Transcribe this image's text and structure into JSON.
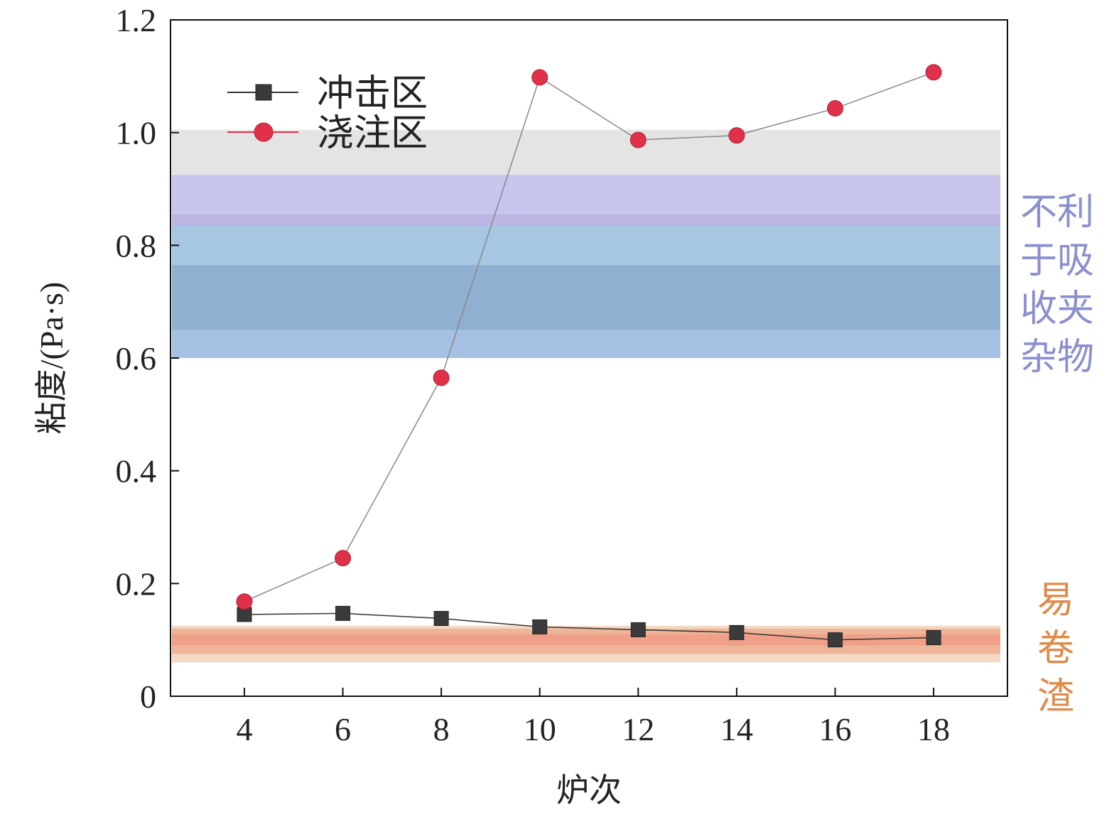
{
  "chart_data": {
    "type": "line",
    "xlabel": "炉次",
    "ylabel": "粘度/(Pa·s)",
    "xlim": [
      2.5,
      19.5
    ],
    "ylim": [
      0,
      1.2
    ],
    "x_ticks": [
      4,
      6,
      8,
      10,
      12,
      14,
      16,
      18
    ],
    "x_tick_labels": [
      "4",
      "6",
      "8",
      "10",
      "12",
      "14",
      "16",
      "18"
    ],
    "y_ticks": [
      0,
      0.2,
      0.4,
      0.6,
      0.8,
      1.0,
      1.2
    ],
    "y_tick_labels": [
      "0",
      "0.2",
      "0.4",
      "0.6",
      "0.8",
      "1.0",
      "1.2"
    ],
    "grid": false,
    "legend_position": "top-left",
    "series": [
      {
        "name": "冲击区",
        "marker": "square",
        "color": "#3a3a3a",
        "x": [
          4,
          6,
          8,
          10,
          12,
          14,
          16,
          18
        ],
        "y": [
          0.145,
          0.147,
          0.138,
          0.123,
          0.118,
          0.113,
          0.1,
          0.104
        ]
      },
      {
        "name": "浇注区",
        "marker": "circle",
        "color": "#e0304a",
        "x": [
          4,
          6,
          8,
          10,
          12,
          14,
          16,
          18
        ],
        "y": [
          0.168,
          0.245,
          0.565,
          1.098,
          0.987,
          0.995,
          1.043,
          1.107
        ]
      }
    ],
    "bands": [
      {
        "id": "inclusion",
        "y_range": [
          0.6,
          1.005
        ],
        "label_lines": [
          "不利",
          "于吸",
          "收夹",
          "杂物"
        ],
        "label_color": "#8a8fcf"
      },
      {
        "id": "slag",
        "y_range": [
          0.06,
          0.125
        ],
        "label_lines": [
          "易",
          "卷",
          "渣"
        ],
        "label_color": "#e08a4a"
      }
    ]
  }
}
